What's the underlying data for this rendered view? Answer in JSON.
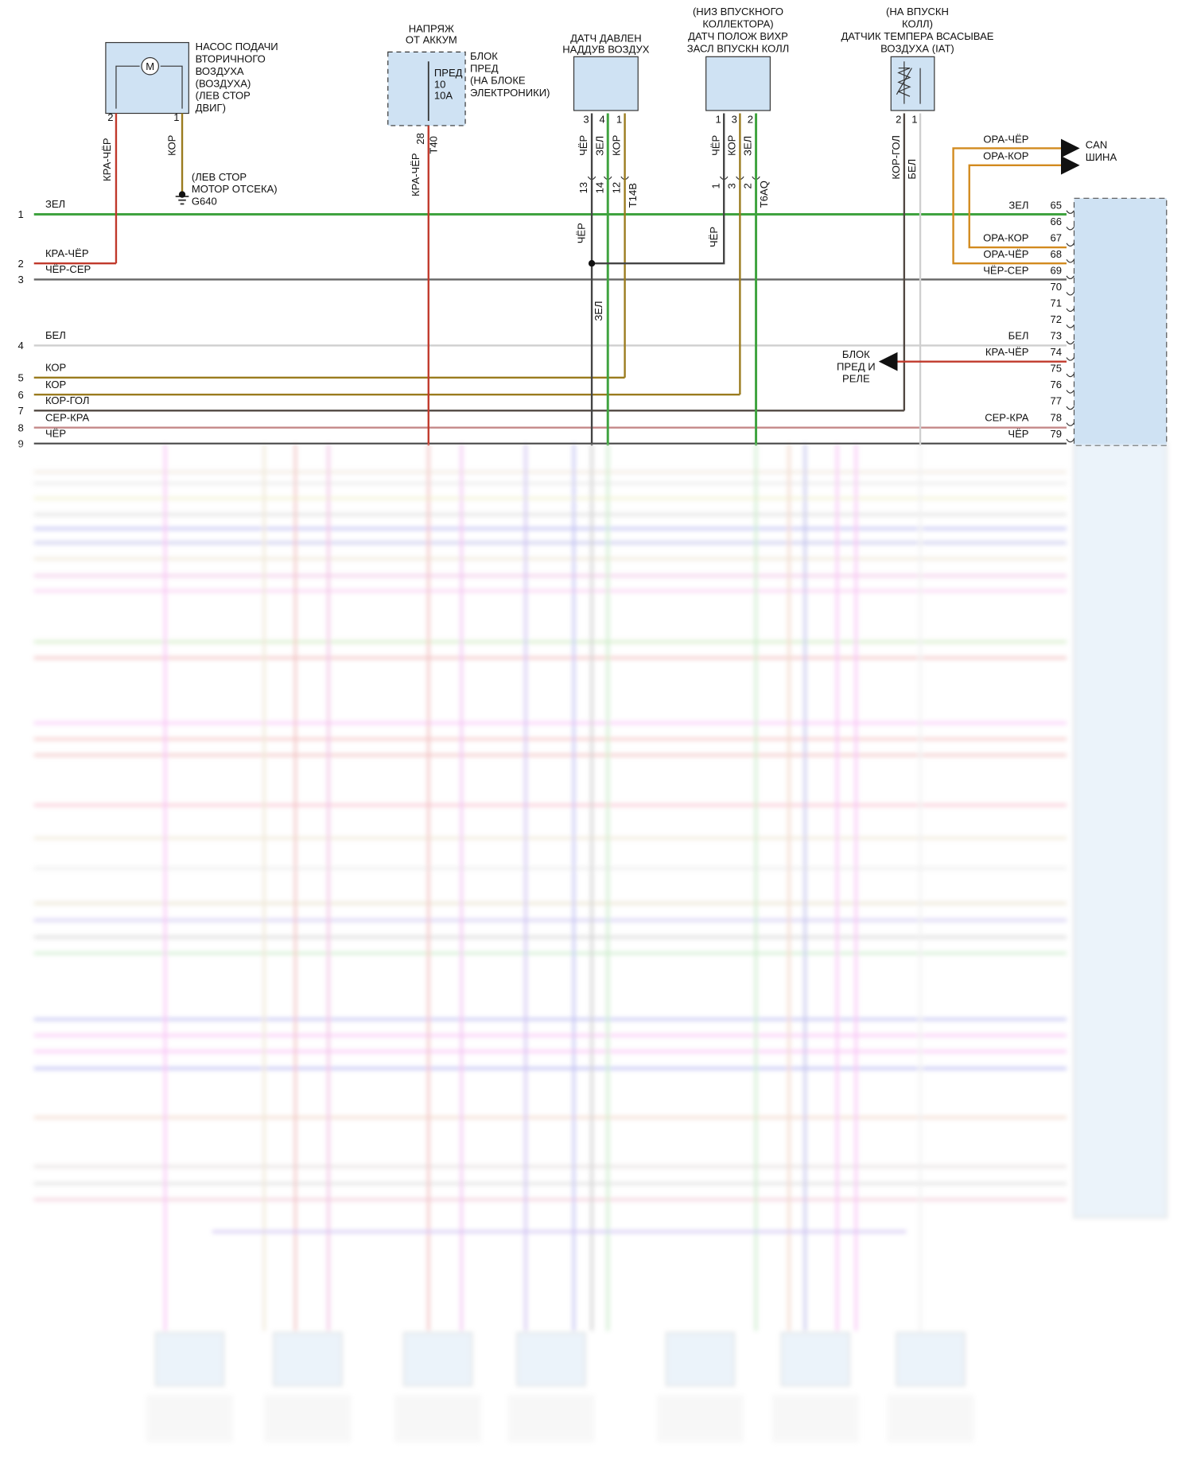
{
  "components": {
    "pump": {
      "label": [
        "НАСОС ПОДАЧИ",
        "ВТОРИЧНОГО",
        "ВОЗДУХА",
        "(ВОЗДУХА)",
        "(ЛЕВ СТОР",
        "ДВИГ)"
      ],
      "motor": "M",
      "pins": [
        "2",
        "1"
      ],
      "wires": [
        "КРА-ЧЁР",
        "КОР"
      ]
    },
    "ground": {
      "label": [
        "(ЛЕВ СТОР",
        "МОТОР ОТСЕКА)",
        "G640"
      ]
    },
    "fuse": {
      "supply": [
        "НАПРЯЖ",
        "ОТ АККУМ"
      ],
      "inside": [
        "ПРЕД",
        "10",
        "10А"
      ],
      "label": [
        "БЛОК",
        "ПРЕД",
        "(НА БЛОКЕ",
        "ЭЛЕКТРОНИКИ)"
      ],
      "pin": "28",
      "connector": "T40",
      "wire": "КРА-ЧЁР"
    },
    "boost": {
      "label": [
        "ДАТЧ ДАВЛЕН",
        "НАДДУВ ВОЗДУХ"
      ],
      "pins": [
        "3",
        "4",
        "1"
      ],
      "wires": [
        "ЧЁР",
        "ЗЕЛ",
        "КОР"
      ],
      "connector_pins": [
        "13",
        "14",
        "12"
      ],
      "connector": "T14B",
      "lower_wires": [
        "ЧЁР",
        "ЗЕЛ"
      ]
    },
    "swirl": {
      "label": [
        "(НИЗ ВПУСКНОГО",
        "КОЛЛЕКТОРА)",
        "ДАТЧ ПОЛОЖ ВИХР",
        "ЗАСЛ ВПУСКН КОЛЛ"
      ],
      "pins": [
        "1",
        "3",
        "2"
      ],
      "wires": [
        "ЧЁР",
        "КОР",
        "ЗЕЛ"
      ],
      "connector_pins": [
        "1",
        "3",
        "2"
      ],
      "connector": "T6AQ",
      "lower_wire": "ЧЁР"
    },
    "iat": {
      "label": [
        "(НА ВПУСКН",
        "КОЛЛ)",
        "ДАТЧИК ТЕМПЕРА ВСАСЫВАЕ",
        "ВОЗДУХА (IAT)"
      ],
      "pins": [
        "2",
        "1"
      ],
      "wires": [
        "КОР-ГОЛ",
        "БЕЛ"
      ]
    }
  },
  "can": {
    "wires": [
      "ОРА-ЧЁР",
      "ОРА-КОР"
    ],
    "label": [
      "CAN",
      "ШИНА"
    ]
  },
  "relay_block": [
    "БЛОК",
    "ПРЕД И",
    "РЕЛЕ"
  ],
  "left_wires": [
    {
      "number": "1",
      "name": "ЗЕЛ"
    },
    {
      "number": "2",
      "name": "КРА-ЧЁР"
    },
    {
      "number": "3",
      "name": "ЧЁР-СЕР"
    },
    {
      "number": "4",
      "name": "БЕЛ"
    },
    {
      "number": "5",
      "name": "КОР"
    },
    {
      "number": "6",
      "name": "КОР"
    },
    {
      "number": "7",
      "name": "КОР-ГОЛ"
    },
    {
      "number": "8",
      "name": "СЕР-КРА"
    },
    {
      "number": "9",
      "name": "ЧЁР"
    }
  ],
  "right_pins": [
    {
      "number": "65",
      "name": "ЗЕЛ"
    },
    {
      "number": "66"
    },
    {
      "number": "67",
      "name": "ОРА-КОР"
    },
    {
      "number": "68",
      "name": "ОРА-ЧЁР"
    },
    {
      "number": "69",
      "name": "ЧЁР-СЕР"
    },
    {
      "number": "70"
    },
    {
      "number": "71"
    },
    {
      "number": "72"
    },
    {
      "number": "73",
      "name": "БЕЛ"
    },
    {
      "number": "74",
      "name": "КРА-ЧЁР"
    },
    {
      "number": "75"
    },
    {
      "number": "76"
    },
    {
      "number": "77"
    },
    {
      "number": "78",
      "name": "СЕР-КРА"
    },
    {
      "number": "79",
      "name": "ЧЁР"
    }
  ]
}
